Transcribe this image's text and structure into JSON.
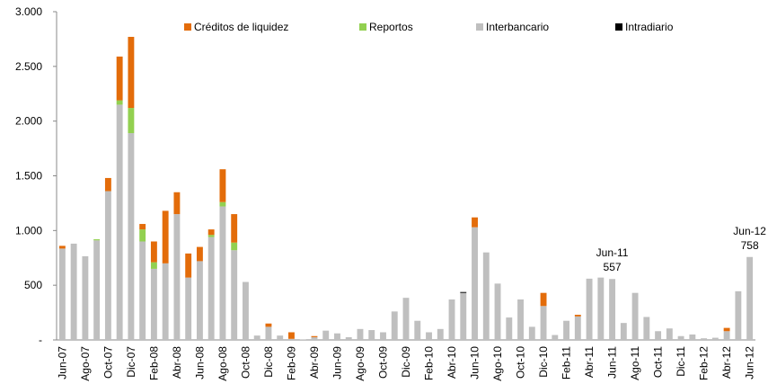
{
  "chart_data": {
    "type": "bar",
    "stacked": true,
    "categories": [
      "Jun-07",
      null,
      "Ago-07",
      null,
      "Oct-07",
      null,
      "Dic-07",
      null,
      "Feb-08",
      null,
      "Abr-08",
      null,
      "Jun-08",
      null,
      "Ago-08",
      null,
      "Oct-08",
      null,
      "Dic-08",
      null,
      "Feb-09",
      null,
      "Abr-09",
      null,
      "Jun-09",
      null,
      "Ago-09",
      null,
      "Oct-09",
      null,
      "Dic-09",
      null,
      "Feb-10",
      null,
      "Abr-10",
      null,
      "Jun-10",
      null,
      "Ago-10",
      null,
      "Oct-10",
      null,
      "Dic-10",
      null,
      "Feb-11",
      null,
      "Abr-11",
      null,
      "Jun-11",
      null,
      "Ago-11",
      null,
      "Oct-11",
      null,
      "Dic-11",
      null,
      "Feb-12",
      null,
      "Abr-12",
      null,
      "Jun-12"
    ],
    "series": [
      {
        "name": "Créditos de liquidez",
        "color": "#e36c0a",
        "values": [
          25,
          0,
          0,
          0,
          120,
          400,
          650,
          50,
          190,
          480,
          200,
          220,
          130,
          50,
          300,
          260,
          0,
          0,
          30,
          0,
          60,
          0,
          10,
          0,
          0,
          0,
          0,
          0,
          0,
          0,
          0,
          0,
          0,
          0,
          0,
          0,
          90,
          0,
          0,
          0,
          0,
          0,
          120,
          0,
          0,
          15,
          0,
          0,
          0,
          0,
          0,
          0,
          0,
          0,
          0,
          0,
          0,
          0,
          30,
          0,
          0
        ]
      },
      {
        "name": "Reportos",
        "color": "#92d050",
        "values": [
          0,
          0,
          0,
          10,
          0,
          40,
          230,
          110,
          60,
          0,
          0,
          0,
          0,
          20,
          40,
          70,
          0,
          0,
          0,
          0,
          0,
          0,
          0,
          0,
          0,
          0,
          0,
          0,
          0,
          0,
          0,
          0,
          0,
          0,
          0,
          0,
          0,
          0,
          0,
          0,
          0,
          0,
          0,
          0,
          0,
          0,
          0,
          0,
          0,
          0,
          0,
          0,
          0,
          0,
          0,
          0,
          0,
          0,
          0,
          0,
          0
        ]
      },
      {
        "name": "Interbancario",
        "color": "#bfbfbf",
        "values": [
          835,
          880,
          765,
          910,
          1360,
          2150,
          1890,
          900,
          650,
          700,
          1150,
          570,
          720,
          940,
          1220,
          820,
          530,
          40,
          120,
          40,
          10,
          5,
          25,
          85,
          60,
          25,
          100,
          90,
          70,
          260,
          385,
          175,
          70,
          100,
          370,
          430,
          1030,
          800,
          515,
          205,
          370,
          120,
          310,
          45,
          175,
          215,
          560,
          570,
          557,
          155,
          430,
          210,
          80,
          105,
          35,
          50,
          15,
          20,
          80,
          445,
          758
        ]
      },
      {
        "name": "Intradiario",
        "color": "#000000",
        "values": [
          0,
          0,
          0,
          0,
          0,
          0,
          0,
          0,
          0,
          0,
          0,
          0,
          0,
          0,
          0,
          0,
          0,
          0,
          0,
          0,
          0,
          0,
          0,
          0,
          0,
          0,
          0,
          0,
          0,
          0,
          0,
          0,
          0,
          0,
          0,
          8,
          0,
          0,
          0,
          0,
          0,
          0,
          0,
          0,
          0,
          0,
          0,
          0,
          0,
          0,
          0,
          0,
          0,
          0,
          0,
          0,
          0,
          0,
          0,
          0,
          0
        ]
      }
    ],
    "stack_order": [
      "Interbancario",
      "Intradiario",
      "Reportos",
      "Créditos de liquidez"
    ],
    "ylim": [
      0,
      3000
    ],
    "yticks": [
      {
        "value": 0,
        "label": "-"
      },
      500,
      {
        "value": 1000,
        "label": "1.000"
      },
      {
        "value": 1500,
        "label": "1.500"
      },
      {
        "value": 2000,
        "label": "2.000"
      },
      {
        "value": 2500,
        "label": "2.500"
      },
      {
        "value": 3000,
        "label": "3.000"
      }
    ],
    "annotations": [
      {
        "category": "Jun-11",
        "label": "557"
      },
      {
        "category": "Jun-12",
        "label": "758"
      }
    ],
    "legend": "top"
  }
}
